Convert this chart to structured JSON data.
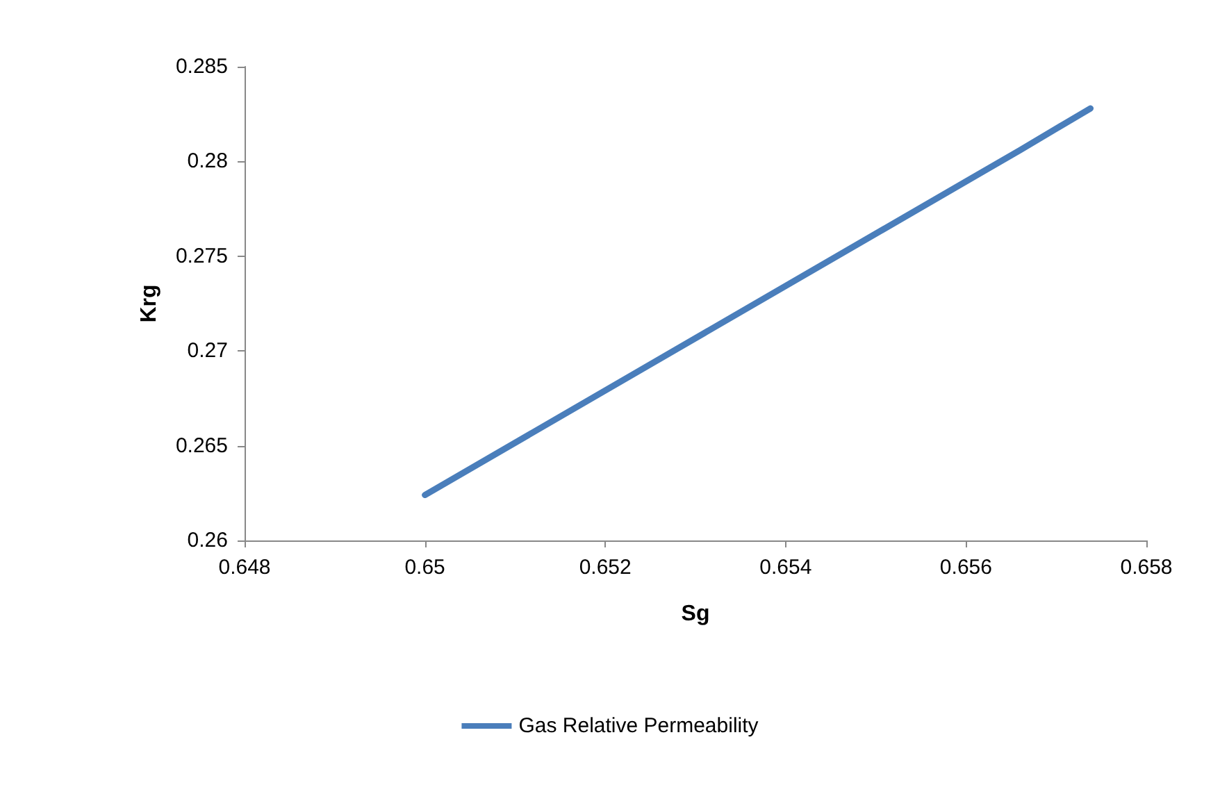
{
  "chart_data": {
    "type": "line",
    "xlabel": "Sg",
    "ylabel": "Krg",
    "x": [
      0.65,
      0.6566,
      0.65738
    ],
    "series": [
      {
        "name": "Gas Relative Permeability",
        "color": "#4a7ebb",
        "values": [
          0.2624,
          0.2806,
          0.2828
        ]
      }
    ],
    "xlim": [
      0.648,
      0.658
    ],
    "xticks": [
      0.648,
      0.65,
      0.652,
      0.654,
      0.656,
      0.658
    ],
    "ylim": [
      0.26,
      0.285
    ],
    "yticks": [
      0.26,
      0.265,
      0.27,
      0.275,
      0.28,
      0.285
    ],
    "grid": false,
    "legend": "bottom",
    "marker": "none",
    "line_style": "solid"
  }
}
